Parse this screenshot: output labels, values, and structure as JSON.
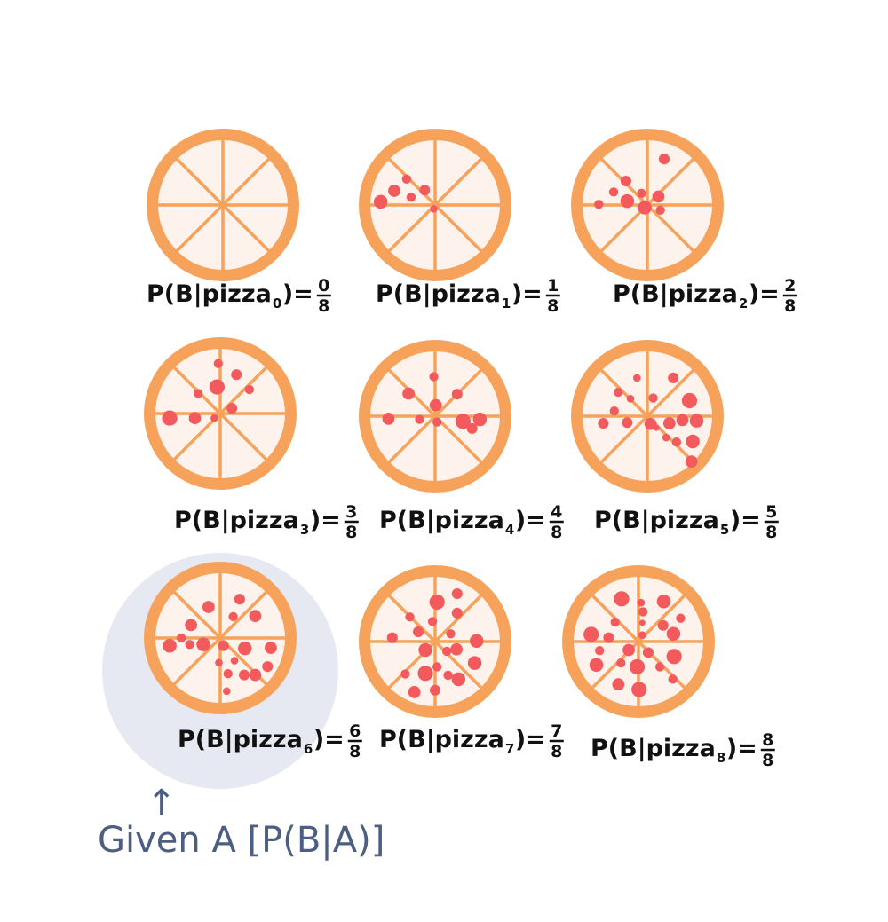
{
  "colors": {
    "crust": "#f6a25b",
    "inner": "#fdf3ec",
    "topping": "#f25a5e",
    "highlight": "#e6e9f1",
    "ink": "#111111",
    "given_ink": "#4c5e82"
  },
  "pizzas": [
    {
      "label": "P(B|pizza",
      "sub": "0",
      "num": "0",
      "den": "8",
      "count": 0,
      "dots": []
    },
    {
      "label": "P(B|pizza",
      "sub": "1",
      "num": "1",
      "den": "8",
      "count": 1,
      "dots": [
        [
          -0.63,
          -0.22,
          0.08
        ],
        [
          -0.44,
          -0.4,
          0.06
        ],
        [
          -0.37,
          -0.12,
          0.06
        ],
        [
          -0.16,
          -0.23,
          0.07
        ],
        [
          -0.84,
          -0.05,
          0.09
        ],
        [
          -0.02,
          0.06,
          0.05
        ]
      ]
    },
    {
      "label": "P(B|pizza",
      "sub": "2",
      "num": "2",
      "den": "8",
      "count": 2,
      "dots": [
        [
          0.26,
          -0.71,
          0.07
        ],
        [
          -0.33,
          -0.37,
          0.07
        ],
        [
          -0.52,
          -0.2,
          0.06
        ],
        [
          -0.09,
          -0.18,
          0.06
        ],
        [
          0.17,
          -0.13,
          0.08
        ],
        [
          -0.04,
          0.04,
          0.09
        ],
        [
          -0.31,
          -0.06,
          0.09
        ],
        [
          -0.75,
          -0.01,
          0.06
        ],
        [
          0.2,
          0.08,
          0.06
        ]
      ]
    },
    {
      "label": "P(B|pizza",
      "sub": "3",
      "num": "3",
      "den": "8",
      "count": 3,
      "dots": [
        [
          -0.03,
          -0.77,
          0.06
        ],
        [
          0.25,
          -0.6,
          0.07
        ],
        [
          -0.05,
          -0.41,
          0.1
        ],
        [
          0.45,
          -0.37,
          0.06
        ],
        [
          -0.34,
          -0.31,
          0.06
        ],
        [
          0.18,
          -0.08,
          0.07
        ],
        [
          -0.78,
          0.07,
          0.1
        ],
        [
          -0.39,
          0.07,
          0.08
        ],
        [
          -0.09,
          0.07,
          0.05
        ]
      ]
    },
    {
      "label": "P(B|pizza",
      "sub": "4",
      "num": "4",
      "den": "8",
      "count": 4,
      "dots": [
        [
          -0.02,
          -0.61,
          0.06
        ],
        [
          -0.41,
          -0.35,
          0.08
        ],
        [
          0.34,
          -0.34,
          0.07
        ],
        [
          0.01,
          -0.17,
          0.08
        ],
        [
          -0.72,
          0.04,
          0.08
        ],
        [
          -0.24,
          0.05,
          0.06
        ],
        [
          0.43,
          0.08,
          0.1
        ],
        [
          0.69,
          0.05,
          0.09
        ],
        [
          0.57,
          0.19,
          0.07
        ],
        [
          0.03,
          0.09,
          0.06
        ]
      ]
    },
    {
      "label": "P(B|pizza",
      "sub": "5",
      "num": "5",
      "den": "8",
      "count": 5,
      "dots": [
        [
          -0.45,
          -0.37,
          0.06
        ],
        [
          -0.16,
          -0.59,
          0.05
        ],
        [
          0.4,
          -0.59,
          0.07
        ],
        [
          -0.26,
          -0.27,
          0.05
        ],
        [
          0.09,
          -0.28,
          0.06
        ],
        [
          0.65,
          -0.24,
          0.1
        ],
        [
          -0.51,
          -0.08,
          0.06
        ],
        [
          -0.68,
          0.11,
          0.07
        ],
        [
          -0.31,
          0.1,
          0.07
        ],
        [
          0.05,
          0.12,
          0.08
        ],
        [
          0.34,
          0.11,
          0.08
        ],
        [
          0.54,
          0.06,
          0.08
        ],
        [
          0.76,
          0.07,
          0.09
        ],
        [
          0.29,
          0.33,
          0.05
        ],
        [
          0.45,
          0.4,
          0.06
        ],
        [
          0.7,
          0.39,
          0.09
        ],
        [
          0.68,
          0.7,
          0.08
        ],
        [
          0.14,
          0.18,
          0.04
        ]
      ]
    },
    {
      "label": "P(B|pizza",
      "sub": "6",
      "num": "6",
      "den": "8",
      "count": 6,
      "dots": [
        [
          0.3,
          -0.6,
          0.07
        ],
        [
          -0.18,
          -0.48,
          0.08
        ],
        [
          0.2,
          -0.33,
          0.06
        ],
        [
          0.54,
          -0.34,
          0.08
        ],
        [
          -0.45,
          -0.2,
          0.08
        ],
        [
          -0.6,
          0.0,
          0.06
        ],
        [
          -0.78,
          0.12,
          0.09
        ],
        [
          -0.47,
          0.1,
          0.06
        ],
        [
          -0.26,
          0.1,
          0.09
        ],
        [
          0.05,
          0.12,
          0.07
        ],
        [
          0.38,
          0.16,
          0.09
        ],
        [
          0.78,
          0.15,
          0.08
        ],
        [
          0.22,
          0.35,
          0.05
        ],
        [
          0.37,
          0.57,
          0.07
        ],
        [
          0.54,
          0.57,
          0.08
        ],
        [
          0.12,
          0.55,
          0.06
        ],
        [
          0.1,
          0.82,
          0.05
        ],
        [
          0.73,
          0.44,
          0.07
        ],
        [
          -0.02,
          0.38,
          0.05
        ]
      ]
    },
    {
      "label": "P(B|pizza",
      "sub": "7",
      "num": "7",
      "den": "8",
      "count": 7,
      "dots": [
        [
          0.34,
          -0.74,
          0.07
        ],
        [
          0.03,
          -0.61,
          0.1
        ],
        [
          0.34,
          -0.44,
          0.07
        ],
        [
          -0.39,
          -0.38,
          0.06
        ],
        [
          -0.04,
          -0.31,
          0.06
        ],
        [
          0.24,
          -0.12,
          0.06
        ],
        [
          -0.66,
          -0.06,
          0.07
        ],
        [
          -0.26,
          -0.15,
          0.07
        ],
        [
          0.64,
          -0.01,
          0.09
        ],
        [
          0.33,
          0.12,
          0.08
        ],
        [
          0.18,
          0.15,
          0.06
        ],
        [
          -0.15,
          0.13,
          0.09
        ],
        [
          0.03,
          0.39,
          0.06
        ],
        [
          -0.15,
          0.49,
          0.1
        ],
        [
          0.2,
          0.52,
          0.06
        ],
        [
          0.36,
          0.58,
          0.09
        ],
        [
          0.61,
          0.33,
          0.09
        ],
        [
          -0.46,
          0.5,
          0.06
        ],
        [
          -0.32,
          0.78,
          0.08
        ],
        [
          0.0,
          0.75,
          0.07
        ]
      ]
    },
    {
      "label": "P(B|pizza",
      "sub": "8",
      "num": "8",
      "den": "8",
      "count": 8,
      "dots": [
        [
          -0.26,
          -0.66,
          0.1
        ],
        [
          0.04,
          -0.6,
          0.05
        ],
        [
          0.39,
          -0.62,
          0.09
        ],
        [
          0.07,
          -0.46,
          0.06
        ],
        [
          0.65,
          -0.36,
          0.06
        ],
        [
          -0.36,
          -0.3,
          0.06
        ],
        [
          0.06,
          -0.29,
          0.04
        ],
        [
          0.38,
          -0.25,
          0.07
        ],
        [
          -0.73,
          -0.11,
          0.1
        ],
        [
          -0.46,
          -0.06,
          0.07
        ],
        [
          0.06,
          -0.1,
          0.05
        ],
        [
          0.54,
          -0.12,
          0.09
        ],
        [
          -0.6,
          0.14,
          0.06
        ],
        [
          -0.15,
          0.13,
          0.08
        ],
        [
          0.15,
          0.17,
          0.07
        ],
        [
          0.55,
          0.23,
          0.1
        ],
        [
          -0.65,
          0.36,
          0.09
        ],
        [
          -0.27,
          0.33,
          0.06
        ],
        [
          -0.02,
          0.39,
          0.1
        ],
        [
          0.33,
          0.39,
          0.06
        ],
        [
          0.53,
          0.58,
          0.06
        ],
        [
          -0.31,
          0.66,
          0.08
        ],
        [
          0.01,
          0.74,
          0.1
        ]
      ]
    }
  ],
  "given": {
    "text": "Given A [P(B|A)]",
    "arrow": "↑",
    "highlighted_index": 6
  }
}
